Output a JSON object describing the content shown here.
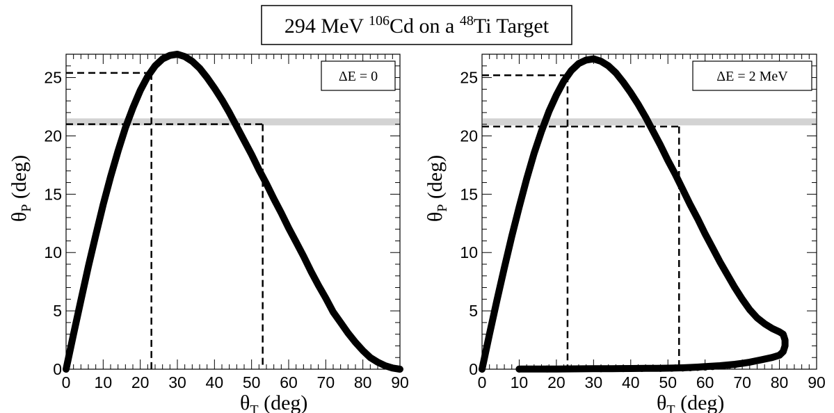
{
  "title": {
    "prefix": "294 MeV ",
    "proj_mass": "106",
    "proj_sym": "Cd on a ",
    "targ_mass": "48",
    "targ_sym": "Ti Target"
  },
  "chart_data": [
    {
      "type": "line",
      "panel": "left",
      "xlabel": "θT (deg)",
      "xlabel_main": "θ",
      "xlabel_sub": "T",
      "xlabel_unit": " (deg)",
      "ylabel": "θP (deg)",
      "ylabel_main": "θ",
      "ylabel_sub": "P",
      "ylabel_unit": " (deg)",
      "xlim": [
        0,
        90
      ],
      "ylim": [
        0,
        27
      ],
      "xticks": [
        0,
        10,
        20,
        30,
        40,
        50,
        60,
        70,
        80,
        90
      ],
      "yticks": [
        0,
        5,
        10,
        15,
        20,
        25
      ],
      "legend": "ΔE = 0",
      "legend_placement": "top-right",
      "band": {
        "y_center": 21.2,
        "half_width": 0.3,
        "color": "#d3d3d3"
      },
      "dashed_lines": [
        {
          "x": 23,
          "y": 25.4
        },
        {
          "x": 53,
          "y": 21.0
        }
      ],
      "series": [
        {
          "x": [
            0,
            2,
            4,
            6,
            8,
            10,
            12,
            14,
            16,
            18,
            20,
            22,
            24,
            26,
            28,
            30,
            32,
            34,
            36,
            38,
            40,
            42,
            44,
            46,
            48,
            50,
            52,
            54,
            56,
            58,
            60,
            62,
            64,
            66,
            68,
            70,
            72,
            74,
            76,
            78,
            80,
            82,
            84,
            86,
            88,
            90
          ],
          "y": [
            0,
            3.0,
            5.9,
            8.8,
            11.5,
            14.1,
            16.5,
            18.7,
            20.7,
            22.4,
            23.9,
            25.1,
            26.0,
            26.6,
            26.9,
            27.0,
            26.8,
            26.4,
            25.8,
            25.0,
            24.1,
            23.1,
            22.0,
            20.8,
            19.6,
            18.4,
            17.1,
            15.9,
            14.6,
            13.4,
            12.1,
            10.9,
            9.7,
            8.4,
            7.2,
            6.1,
            4.9,
            4.0,
            3.1,
            2.3,
            1.6,
            1.0,
            0.6,
            0.3,
            0.1,
            0
          ]
        }
      ]
    },
    {
      "type": "line",
      "panel": "right",
      "xlabel": "θT (deg)",
      "xlabel_main": "θ",
      "xlabel_sub": "T",
      "xlabel_unit": " (deg)",
      "ylabel": "θP (deg)",
      "ylabel_main": "θ",
      "ylabel_sub": "P",
      "ylabel_unit": " (deg)",
      "xlim": [
        0,
        90
      ],
      "ylim": [
        0,
        27
      ],
      "xticks": [
        0,
        10,
        20,
        30,
        40,
        50,
        60,
        70,
        80,
        90
      ],
      "yticks": [
        0,
        5,
        10,
        15,
        20,
        25
      ],
      "legend": "ΔE = 2 MeV",
      "legend_placement": "top-right",
      "band": {
        "y_center": 21.2,
        "half_width": 0.3,
        "color": "#d3d3d3"
      },
      "dashed_lines": [
        {
          "x": 23,
          "y": 25.2
        },
        {
          "x": 53,
          "y": 20.8
        }
      ],
      "series": [
        {
          "x": [
            0,
            2,
            4,
            6,
            8,
            10,
            12,
            14,
            16,
            18,
            20,
            22,
            24,
            26,
            28,
            30,
            32,
            34,
            36,
            38,
            40,
            42,
            44,
            46,
            48,
            50,
            52,
            54,
            56,
            58,
            60,
            62,
            64,
            66,
            68,
            70,
            72,
            74,
            76,
            78,
            80,
            81,
            81.5,
            81.5,
            81,
            80,
            78,
            75,
            72,
            70,
            68,
            66,
            64,
            62,
            60,
            58,
            56,
            55,
            54,
            52,
            50,
            47,
            44,
            40,
            35,
            30,
            25,
            20,
            15,
            10
          ],
          "y": [
            0,
            3.0,
            5.9,
            8.7,
            11.4,
            13.9,
            16.3,
            18.5,
            20.4,
            22.1,
            23.5,
            24.7,
            25.6,
            26.2,
            26.5,
            26.6,
            26.4,
            26.0,
            25.4,
            24.6,
            23.7,
            22.7,
            21.6,
            20.4,
            19.2,
            17.9,
            16.7,
            15.4,
            14.1,
            12.9,
            11.6,
            10.4,
            9.2,
            8.1,
            7.0,
            6.0,
            5.1,
            4.4,
            3.9,
            3.5,
            3.2,
            3.0,
            2.5,
            2.0,
            1.5,
            1.2,
            1.0,
            0.8,
            0.6,
            0.5,
            0.42,
            0.36,
            0.3,
            0.26,
            0.22,
            0.18,
            0.15,
            0.13,
            0.12,
            0.1,
            0.09,
            0.08,
            0.07,
            0.06,
            0.05,
            0.04,
            0.03,
            0.02,
            0.02,
            0.01
          ]
        }
      ],
      "markers": {
        "x": [
          10,
          17.5,
          25,
          32,
          38,
          43,
          48,
          51,
          54,
          56,
          58,
          60,
          62,
          63.5,
          65,
          66.5,
          68
        ],
        "y": [
          0.01,
          0.02,
          0.03,
          0.04,
          0.05,
          0.06,
          0.07,
          0.08,
          0.1,
          0.12,
          0.15,
          0.18,
          0.22,
          0.26,
          0.3,
          0.34,
          0.38
        ]
      }
    }
  ]
}
